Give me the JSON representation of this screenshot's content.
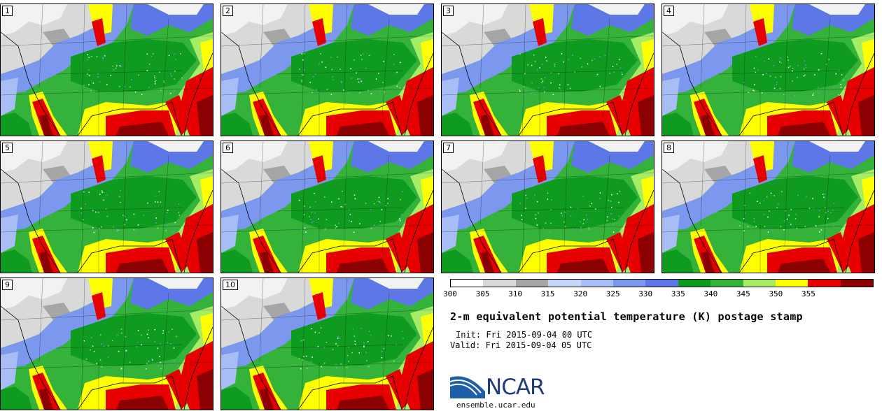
{
  "panels": [
    "1",
    "2",
    "3",
    "4",
    "5",
    "6",
    "7",
    "8",
    "9",
    "10"
  ],
  "colorbar": {
    "ticks": [
      "300",
      "305",
      "310",
      "315",
      "320",
      "325",
      "330",
      "335",
      "340",
      "345",
      "350",
      "355"
    ],
    "colors": [
      "#ffffff",
      "#d9d9d9",
      "#a6a6a6",
      "#c8d6fa",
      "#a8bdf5",
      "#7b98ee",
      "#5d77e6",
      "#0e9b1f",
      "#34b23a",
      "#a6ed66",
      "#ffff00",
      "#e60000",
      "#8b0000"
    ]
  },
  "title": "2-m equivalent potential temperature (K) postage stamp",
  "init": "Init: Fri 2015-09-04 00 UTC",
  "valid": "Valid: Fri 2015-09-04 05 UTC",
  "logo": {
    "text": "NCAR",
    "site": "ensemble.ucar.edu"
  }
}
